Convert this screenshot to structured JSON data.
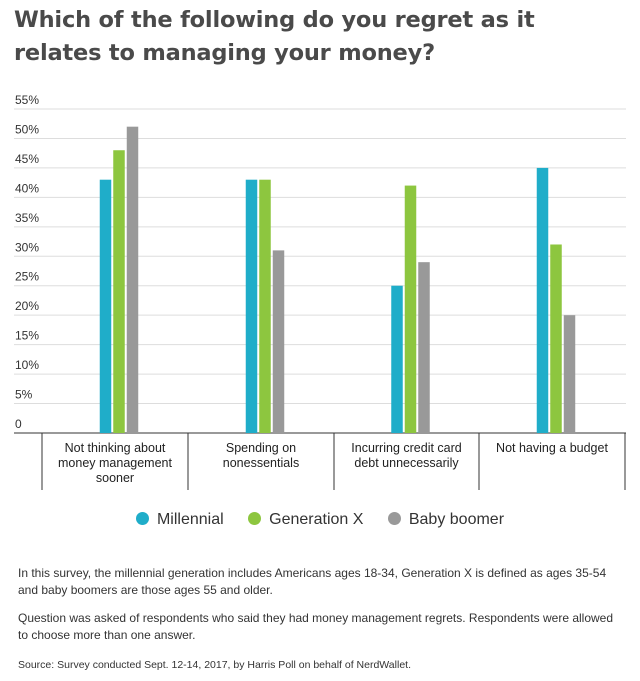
{
  "title": "Which of the following do you regret as it relates to managing your money?",
  "chart_data": {
    "type": "bar",
    "y_ticks": [
      "0",
      "5%",
      "10%",
      "15%",
      "20%",
      "25%",
      "30%",
      "35%",
      "40%",
      "45%",
      "50%",
      "55%"
    ],
    "ylim": [
      0,
      55
    ],
    "categories": [
      [
        "Not thinking about",
        "money management",
        "sooner"
      ],
      [
        "Spending on",
        "nonessentials"
      ],
      [
        "Incurring credit card",
        "debt unnecessarily"
      ],
      [
        "Not having a budget"
      ]
    ],
    "series": [
      {
        "name": "Millennial",
        "color": "#1fadc9",
        "values": [
          43,
          43,
          25,
          45
        ]
      },
      {
        "name": "Generation X",
        "color": "#8dc63f",
        "values": [
          48,
          43,
          42,
          32
        ]
      },
      {
        "name": "Baby boomer",
        "color": "#999999",
        "values": [
          52,
          31,
          29,
          20
        ]
      }
    ],
    "grid": true,
    "legend": "bottom"
  },
  "notes": [
    "In this survey, the millennial generation includes Americans ages 18-34, Generation X is defined as ages 35-54 and baby boomers are those ages 55 and older.",
    "Question was asked of respondents who said they had money management regrets. Respondents were allowed to choose more than one answer."
  ],
  "source": "Source: Survey conducted Sept. 12-14, 2017, by Harris Poll on behalf of NerdWallet."
}
